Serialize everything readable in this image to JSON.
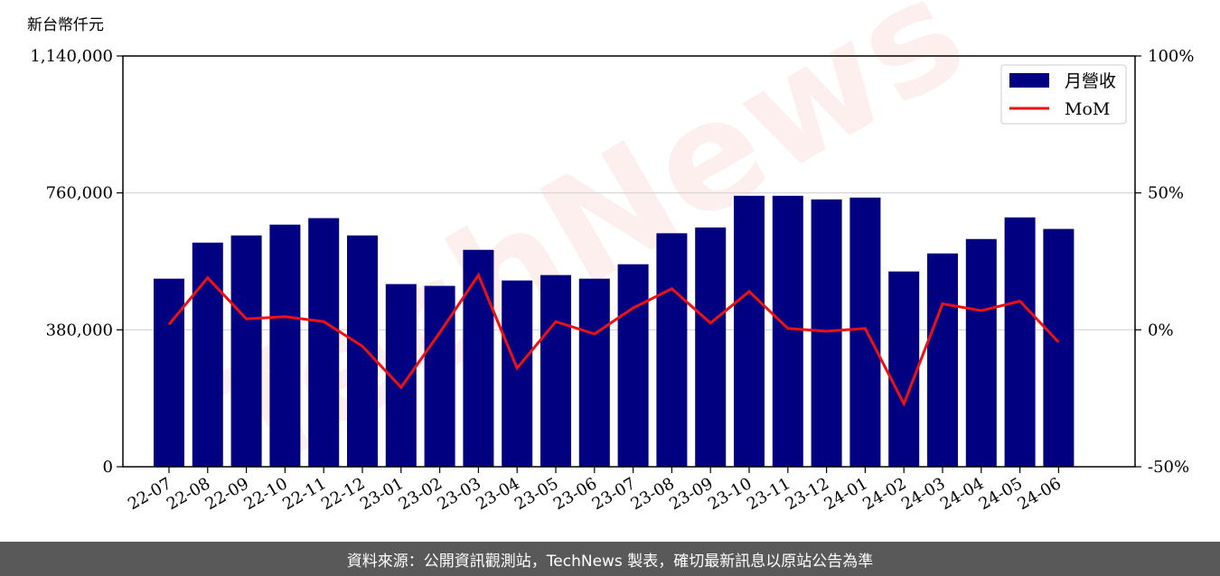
{
  "watermark": "TechNews",
  "footer": {
    "source_text": "資料來源：公開資訊觀測站，TechNews 製表，確切最新訊息以原站公告為準"
  },
  "chart_data": {
    "type": "bar",
    "unit_label": "新台幣仟元",
    "categories": [
      "22-07",
      "22-08",
      "22-09",
      "22-10",
      "22-11",
      "22-12",
      "23-01",
      "23-02",
      "23-03",
      "23-04",
      "23-05",
      "23-06",
      "23-07",
      "23-08",
      "23-09",
      "23-10",
      "23-11",
      "23-12",
      "24-01",
      "24-02",
      "24-03",
      "24-04",
      "24-05",
      "24-06"
    ],
    "series": [
      {
        "name": "月營收",
        "axis": "left",
        "kind": "bar",
        "color": "#000080",
        "values": [
          522000,
          622000,
          642000,
          672000,
          690000,
          642000,
          507000,
          502000,
          602000,
          517000,
          532000,
          522000,
          562000,
          648000,
          664000,
          752000,
          752000,
          742000,
          747000,
          542000,
          592000,
          632000,
          692000,
          660000
        ]
      },
      {
        "name": "MoM",
        "axis": "right",
        "kind": "line",
        "color": "#ee1111",
        "values": [
          2,
          19,
          4,
          4.8,
          3,
          -6,
          -21,
          -1,
          20,
          -14,
          3,
          -1.5,
          8,
          15,
          2.5,
          14,
          0.5,
          -0.5,
          0.5,
          -27,
          9.5,
          7,
          10.5,
          -4.5
        ]
      }
    ],
    "ylim_left": [
      0,
      1140000
    ],
    "yticks_left": [
      "0",
      "380,000",
      "760,000",
      "1,140,000"
    ],
    "ylim_right": [
      -50,
      100
    ],
    "yticks_right": [
      "-50%",
      "0%",
      "50%",
      "100%"
    ],
    "legend": {
      "placement": "top-right"
    },
    "grid": "horizontal"
  }
}
